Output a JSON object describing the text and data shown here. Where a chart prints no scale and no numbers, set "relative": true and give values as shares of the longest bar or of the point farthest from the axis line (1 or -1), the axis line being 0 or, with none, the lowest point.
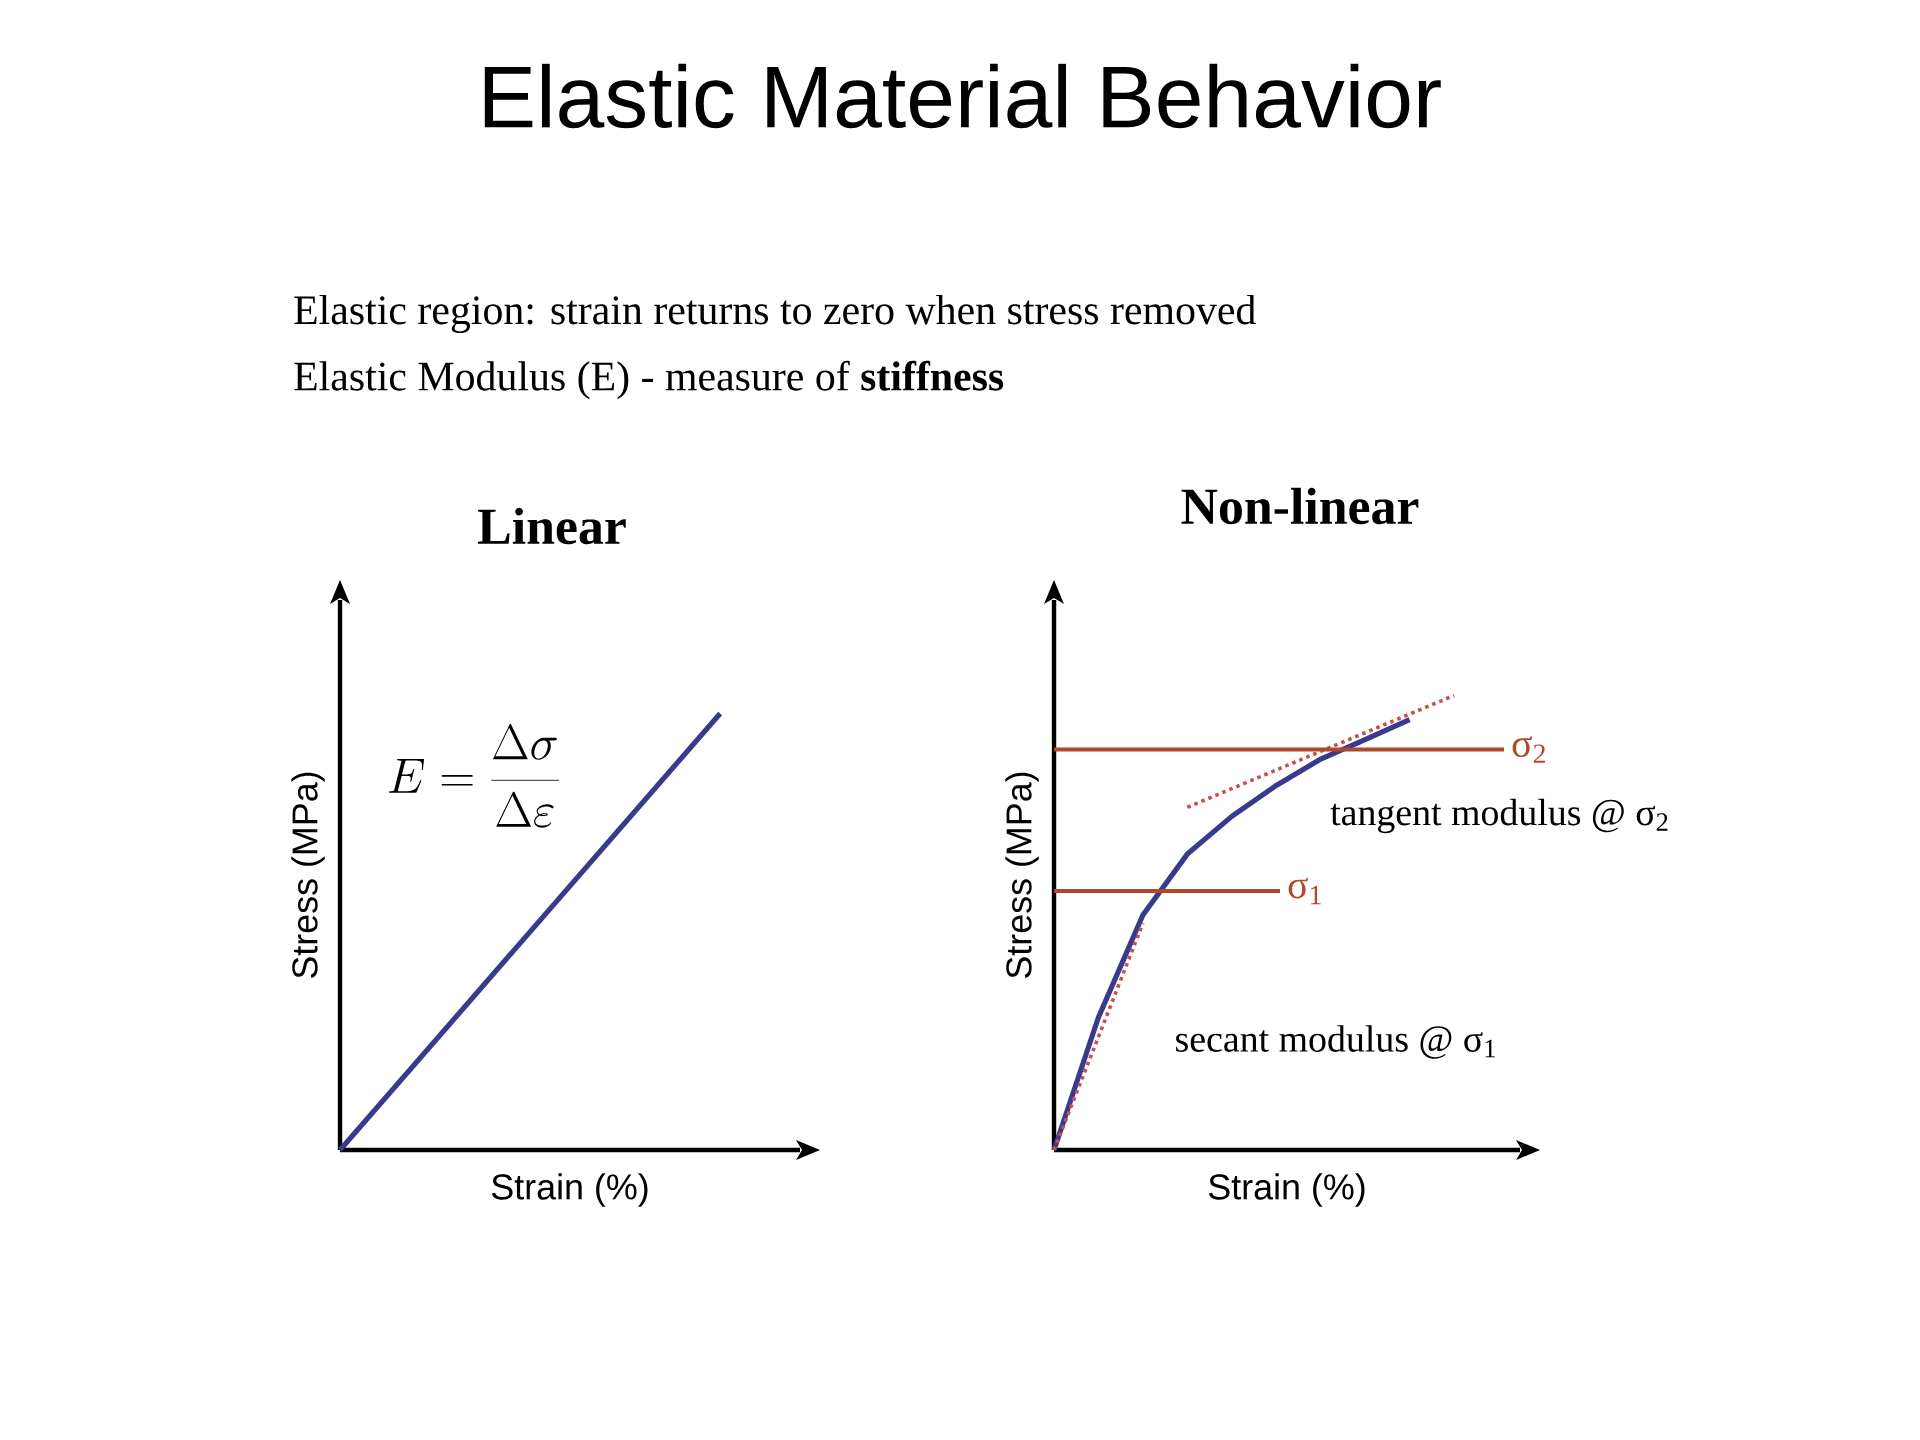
{
  "chart_data": [
    {
      "type": "other",
      "title": "Elastic Material Behavior",
      "annotations": [
        "Elastic region: strain returns to zero when stress removed",
        "Elastic Modulus (E) - measure of **stiffness**"
      ]
    },
    {
      "type": "line",
      "title": "Linear",
      "xlabel": "Strain (%)",
      "ylabel": "Stress (MPa)",
      "relative": true,
      "annotations": [
        "E=\\frac{\\Delta\\sigma}{\\Delta\\varepsilon}"
      ],
      "categories": [
        null,
        null
      ],
      "series": [
        {
          "color": "#3a3a8c",
          "values": [
            0,
            1
          ]
        }
      ]
    },
    {
      "type": "line",
      "title": "Non-linear",
      "xlabel": "Strain (%)",
      "ylabel": "Stress (MPa)",
      "relative": true,
      "categories": [
        null,
        null,
        null,
        null,
        null,
        null,
        null,
        null,
        null,
        null
      ],
      "series": [
        {
          "color": "#3a3a8c",
          "values": [
            0,
            0.292,
            0.517,
            0.651,
            0.734,
            0.802,
            0.86,
            0.903,
            0.947,
            null
          ]
        },
        {
          "color": "#c8504a",
          "line_style": "dotted",
          "values": [
            0,
            0.249,
            0.499,
            null,
            null,
            null,
            null,
            null,
            null,
            null
          ]
        },
        {
          "color": "#c8504a",
          "line_style": "dotted",
          "values": [
            null,
            null,
            null,
            0.754,
            0.795,
            0.836,
            0.877,
            0.918,
            0.959,
            1
          ]
        }
      ],
      "ref_lines": [
        {
          "axis": "y",
          "value": 0.57,
          "label": "σ$_{1}$",
          "color": "#b0482a"
        },
        {
          "axis": "y",
          "value": 0.881,
          "label": "σ$_{2}$",
          "color": "#b0482a"
        }
      ],
      "annotations": [
        "tangent modulus @ σ$_{2}$",
        "secant modulus @ σ$_{1}$"
      ]
    }
  ]
}
